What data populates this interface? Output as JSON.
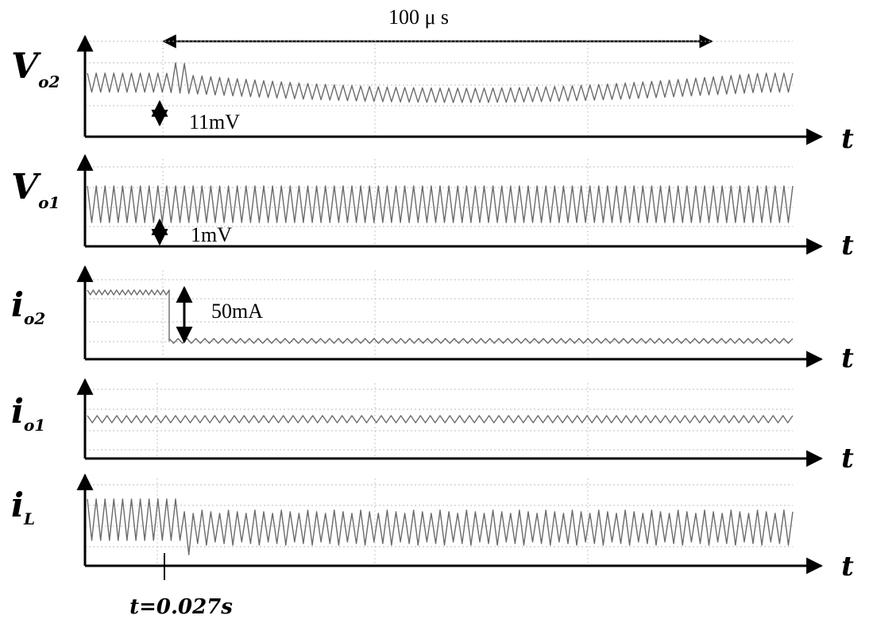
{
  "chart_data": {
    "type": "line",
    "title": "",
    "duration_annotation": "100 μ s",
    "marker_label": "t=0.027s",
    "x_axis_label": "t",
    "grid": "dotted",
    "panels": [
      {
        "id": "vo2",
        "label_main": "V",
        "label_sub": "o2",
        "annotation": "11mV",
        "waveform": "ripple, amplitude dips after step then recovers",
        "ripple_cycles": 80
      },
      {
        "id": "vo1",
        "label_main": "V",
        "label_sub": "o1",
        "annotation": "1mV",
        "waveform": "steady ripple, unaffected",
        "ripple_cycles": 80
      },
      {
        "id": "io2",
        "label_main": "i",
        "label_sub": "o2",
        "annotation": "50mA",
        "waveform": "load step down",
        "ripple_cycles": 70
      },
      {
        "id": "io1",
        "label_main": "i",
        "label_sub": "o1",
        "annotation": "",
        "waveform": "steady small ripple",
        "ripple_cycles": 72
      },
      {
        "id": "il",
        "label_main": "i",
        "label_sub": "L",
        "annotation": "",
        "waveform": "inductor current, ripple pattern changes after step",
        "ripple_cycles": 80
      }
    ]
  }
}
